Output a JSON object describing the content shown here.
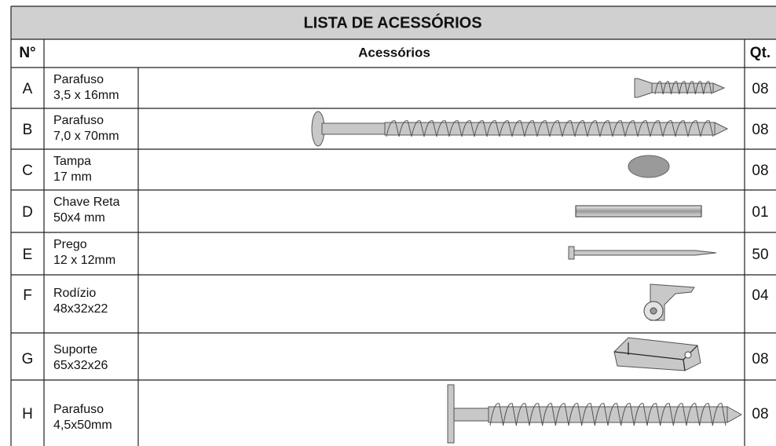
{
  "header": {
    "title": "LISTA DE ACESSÓRIOS",
    "columns": [
      "N°",
      "Acessórios",
      "Qt."
    ]
  },
  "rows": [
    {
      "id": "A",
      "name": "Parafuso",
      "size": "3,5 x 16mm",
      "qty": "08"
    },
    {
      "id": "B",
      "name": "Parafuso",
      "size": "7,0 x 70mm",
      "qty": "08"
    },
    {
      "id": "C",
      "name": "Tampa",
      "size": "17 mm",
      "qty": "08"
    },
    {
      "id": "D",
      "name": "Chave Reta",
      "size": "50x4 mm",
      "qty": "01"
    },
    {
      "id": "E",
      "name": "Prego",
      "size": "12 x 12mm",
      "qty": "50"
    },
    {
      "id": "F",
      "name": "Rodízio",
      "size": "48x32x22",
      "qty": "04"
    },
    {
      "id": "G",
      "name": "Suporte",
      "size": "65x32x26",
      "qty": "08"
    },
    {
      "id": "H",
      "name": "Parafuso",
      "size": "4,5x50mm",
      "qty": "08"
    }
  ]
}
